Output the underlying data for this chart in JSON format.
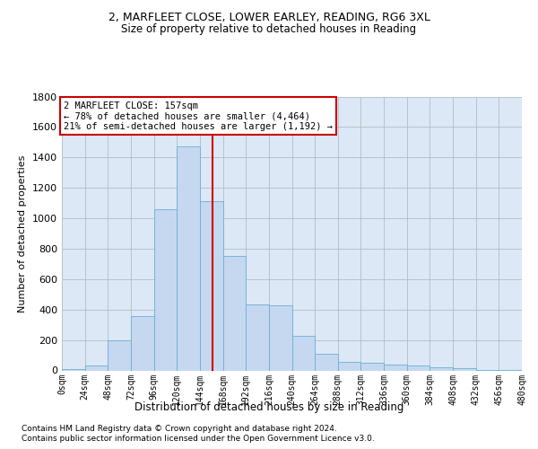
{
  "title1": "2, MARFLEET CLOSE, LOWER EARLEY, READING, RG6 3XL",
  "title2": "Size of property relative to detached houses in Reading",
  "xlabel": "Distribution of detached houses by size in Reading",
  "ylabel": "Number of detached properties",
  "footnote1": "Contains HM Land Registry data © Crown copyright and database right 2024.",
  "footnote2": "Contains public sector information licensed under the Open Government Licence v3.0.",
  "annotation_line1": "2 MARFLEET CLOSE: 157sqm",
  "annotation_line2": "← 78% of detached houses are smaller (4,464)",
  "annotation_line3": "21% of semi-detached houses are larger (1,192) →",
  "property_size": 157,
  "bin_edges": [
    0,
    24,
    48,
    72,
    96,
    120,
    144,
    168,
    192,
    216,
    240,
    264,
    288,
    312,
    336,
    360,
    384,
    408,
    432,
    456,
    480
  ],
  "counts": [
    10,
    35,
    200,
    360,
    1060,
    1470,
    1115,
    750,
    435,
    430,
    225,
    110,
    55,
    50,
    40,
    30,
    20,
    15,
    5,
    5
  ],
  "bar_color": "#c5d8f0",
  "bar_edge_color": "#6baed6",
  "vline_color": "#cc0000",
  "background_color": "#ffffff",
  "axes_bg_color": "#dce8f5",
  "grid_color": "#b0bec5",
  "annotation_box_color": "#cc0000",
  "ylim": [
    0,
    1800
  ],
  "yticks": [
    0,
    200,
    400,
    600,
    800,
    1000,
    1200,
    1400,
    1600,
    1800
  ]
}
